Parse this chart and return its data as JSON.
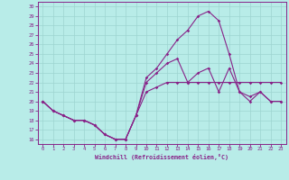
{
  "xlabel": "Windchill (Refroidissement éolien,°C)",
  "bg_color": "#b8ece8",
  "grid_color": "#9dd4d0",
  "line_color": "#882288",
  "xlim": [
    -0.5,
    23.5
  ],
  "ylim": [
    15.5,
    30.5
  ],
  "xticks": [
    0,
    1,
    2,
    3,
    4,
    5,
    6,
    7,
    8,
    9,
    10,
    11,
    12,
    13,
    14,
    15,
    16,
    17,
    18,
    19,
    20,
    21,
    22,
    23
  ],
  "yticks": [
    16,
    17,
    18,
    19,
    20,
    21,
    22,
    23,
    24,
    25,
    26,
    27,
    28,
    29,
    30
  ],
  "line1_x": [
    0,
    1,
    2,
    3,
    4,
    5,
    6,
    7,
    8,
    9,
    10,
    11,
    12,
    13,
    14,
    15,
    16,
    17,
    18,
    19,
    20,
    21,
    22,
    23
  ],
  "line1_y": [
    20,
    19,
    18.5,
    18,
    18,
    17.5,
    16.5,
    16,
    16,
    18.5,
    21,
    21.5,
    22,
    22,
    22,
    22,
    22,
    22,
    22,
    22,
    22,
    22,
    22,
    22
  ],
  "line2_x": [
    0,
    1,
    2,
    3,
    4,
    5,
    6,
    7,
    8,
    9,
    10,
    11,
    12,
    13,
    14,
    15,
    16,
    17,
    18,
    19,
    20,
    21,
    22,
    23
  ],
  "line2_y": [
    20,
    19,
    18.5,
    18,
    18,
    17.5,
    16.5,
    16,
    16,
    18.5,
    22,
    23,
    24,
    24.5,
    22,
    23,
    23.5,
    21,
    23.5,
    21,
    20.5,
    21,
    20,
    20
  ],
  "line3_x": [
    0,
    1,
    2,
    3,
    4,
    5,
    6,
    7,
    8,
    9,
    10,
    11,
    12,
    13,
    14,
    15,
    16,
    17,
    18,
    19,
    20,
    21,
    22,
    23
  ],
  "line3_y": [
    20,
    19,
    18.5,
    18,
    18,
    17.5,
    16.5,
    16,
    16,
    18.5,
    22.5,
    23.5,
    25,
    26.5,
    27.5,
    29,
    29.5,
    28.5,
    25,
    21,
    20,
    21,
    20,
    20
  ]
}
